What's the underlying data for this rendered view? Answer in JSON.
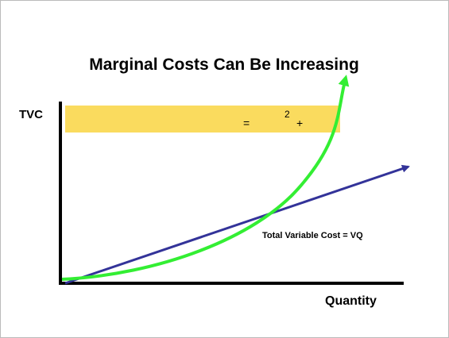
{
  "header": {
    "title": "Marginal Costs Can Be Increasing"
  },
  "axes": {
    "y_label": "TVC",
    "x_label": "Quantity"
  },
  "formula_box": {
    "parts": [
      "=",
      "2",
      "+"
    ]
  },
  "line_label": "Total Variable Cost = VQ"
}
